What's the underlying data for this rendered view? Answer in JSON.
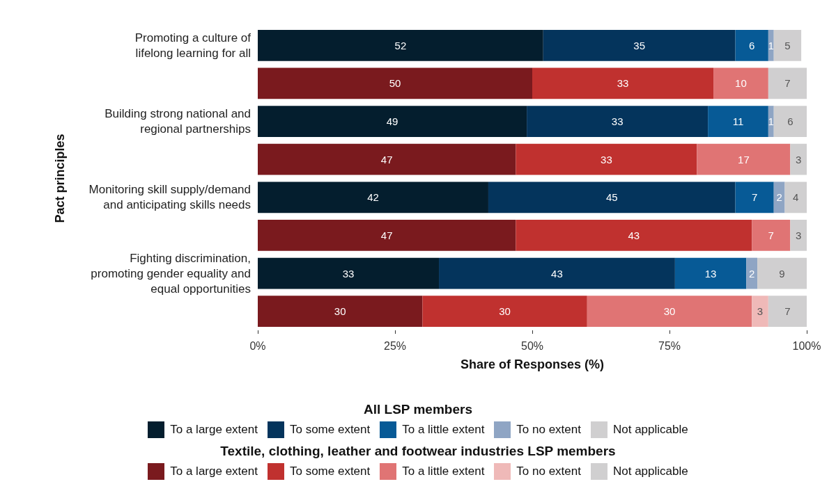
{
  "chart_data": {
    "type": "bar",
    "orientation": "horizontal",
    "stacked": true,
    "data_labels": true,
    "grid": false,
    "legend": "bottom",
    "xlabel": "Share of Responses (%)",
    "ylabel": "Pact principles",
    "legend_title": [
      "All LSP members",
      "Textile, clothing, leather and footwear industries LSP members"
    ],
    "categories": [
      "Promoting a culture of\nlifelong learning for all",
      null,
      "Building strong national and\nregional partnerships",
      null,
      "Monitoring skill supply/demand\nand anticipating skills needs",
      null,
      "Fighting discrimination,\npromoting gender equality and\nequal opportunities",
      null
    ],
    "xlim": [
      0,
      100
    ],
    "xticks": [
      {
        "value": 0,
        "label": "0%"
      },
      {
        "value": 25,
        "label": "25%"
      },
      {
        "value": 50,
        "label": "50%"
      },
      {
        "value": 75,
        "label": "75%"
      },
      {
        "value": 100,
        "label": "100%"
      }
    ],
    "series": [
      {
        "name": "To a large extent",
        "color": "#041e2e",
        "values": [
          52,
          null,
          49,
          null,
          42,
          null,
          33,
          null
        ]
      },
      {
        "name": "To some extent",
        "color": "#04345c",
        "values": [
          35,
          null,
          33,
          null,
          45,
          null,
          43,
          null
        ]
      },
      {
        "name": "To a little extent",
        "color": "#075a96",
        "values": [
          6,
          null,
          11,
          null,
          7,
          null,
          13,
          null
        ]
      },
      {
        "name": "To no extent",
        "color": "#8fa5c4",
        "values": [
          1,
          null,
          1,
          null,
          2,
          null,
          2,
          null
        ]
      },
      {
        "name": "Not applicable",
        "color": "#d0cfd0",
        "values": [
          5,
          null,
          6,
          null,
          4,
          null,
          9,
          null
        ]
      },
      {
        "name": "To a large extent",
        "color": "#7a1a1e",
        "values": [
          null,
          50,
          null,
          47,
          null,
          47,
          null,
          30
        ]
      },
      {
        "name": "To some extent",
        "color": "#c0312f",
        "values": [
          null,
          33,
          null,
          33,
          null,
          43,
          null,
          30
        ]
      },
      {
        "name": "To a little extent",
        "color": "#e07474",
        "values": [
          null,
          10,
          null,
          17,
          null,
          7,
          null,
          30
        ]
      },
      {
        "name": "To no extent",
        "color": "#efb9b8",
        "values": [
          null,
          null,
          null,
          null,
          null,
          null,
          null,
          3
        ]
      },
      {
        "name": "Not applicable",
        "color": "#d0cfd0",
        "values": [
          null,
          7,
          null,
          3,
          null,
          3,
          null,
          7
        ]
      }
    ]
  }
}
